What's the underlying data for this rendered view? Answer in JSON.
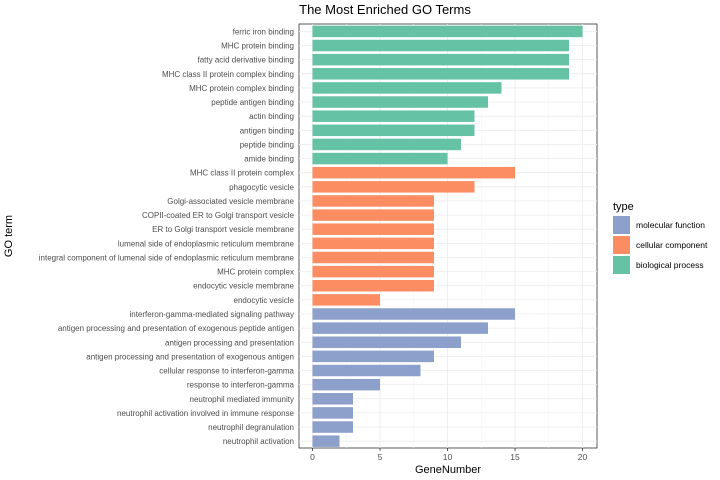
{
  "chart_data": {
    "type": "bar",
    "orientation": "horizontal",
    "title": "The Most Enriched GO Terms",
    "xlabel": "GeneNumber",
    "ylabel": "GO term",
    "xlim": [
      0,
      20
    ],
    "xticks": [
      0,
      5,
      10,
      15,
      20
    ],
    "grid": true,
    "legend": {
      "title": "type",
      "position": "right",
      "entries": [
        {
          "name": "molecular function",
          "color": "#8DA0CB"
        },
        {
          "name": "cellular component",
          "color": "#FC8D62"
        },
        {
          "name": "biological process",
          "color": "#66C2A5"
        }
      ]
    },
    "bars": [
      {
        "term": "ferric iron binding",
        "value": 20,
        "type": "biological process"
      },
      {
        "term": "MHC protein binding",
        "value": 19,
        "type": "biological process"
      },
      {
        "term": "fatty acid derivative binding",
        "value": 19,
        "type": "biological process"
      },
      {
        "term": "MHC class II protein complex binding",
        "value": 19,
        "type": "biological process"
      },
      {
        "term": "MHC protein complex binding",
        "value": 14,
        "type": "biological process"
      },
      {
        "term": "peptide antigen binding",
        "value": 13,
        "type": "biological process"
      },
      {
        "term": "actin binding",
        "value": 12,
        "type": "biological process"
      },
      {
        "term": "antigen binding",
        "value": 12,
        "type": "biological process"
      },
      {
        "term": "peptide binding",
        "value": 11,
        "type": "biological process"
      },
      {
        "term": "amide binding",
        "value": 10,
        "type": "biological process"
      },
      {
        "term": "MHC class II protein complex",
        "value": 15,
        "type": "cellular component"
      },
      {
        "term": "phagocytic vesicle",
        "value": 12,
        "type": "cellular component"
      },
      {
        "term": "Golgi-associated vesicle membrane",
        "value": 9,
        "type": "cellular component"
      },
      {
        "term": "COPII-coated ER to Golgi transport vesicle",
        "value": 9,
        "type": "cellular component"
      },
      {
        "term": "ER to Golgi transport vesicle membrane",
        "value": 9,
        "type": "cellular component"
      },
      {
        "term": "lumenal side of endoplasmic reticulum membrane",
        "value": 9,
        "type": "cellular component"
      },
      {
        "term": "integral component of lumenal side of endoplasmic reticulum membrane",
        "value": 9,
        "type": "cellular component"
      },
      {
        "term": "MHC protein complex",
        "value": 9,
        "type": "cellular component"
      },
      {
        "term": "endocytic vesicle membrane",
        "value": 9,
        "type": "cellular component"
      },
      {
        "term": "endocytic vesicle",
        "value": 5,
        "type": "cellular component"
      },
      {
        "term": "interferon-gamma-mediated signaling pathway",
        "value": 15,
        "type": "molecular function"
      },
      {
        "term": "antigen processing and presentation of exogenous peptide antigen",
        "value": 13,
        "type": "molecular function"
      },
      {
        "term": "antigen processing and presentation",
        "value": 11,
        "type": "molecular function"
      },
      {
        "term": "antigen processing and presentation of exogenous antigen",
        "value": 9,
        "type": "molecular function"
      },
      {
        "term": "cellular response to interferon-gamma",
        "value": 8,
        "type": "molecular function"
      },
      {
        "term": "response to interferon-gamma",
        "value": 5,
        "type": "molecular function"
      },
      {
        "term": "neutrophil mediated immunity",
        "value": 3,
        "type": "molecular function"
      },
      {
        "term": "neutrophil activation involved in immune response",
        "value": 3,
        "type": "molecular function"
      },
      {
        "term": "neutrophil degranulation",
        "value": 3,
        "type": "molecular function"
      },
      {
        "term": "neutrophil activation",
        "value": 2,
        "type": "molecular function"
      }
    ]
  }
}
